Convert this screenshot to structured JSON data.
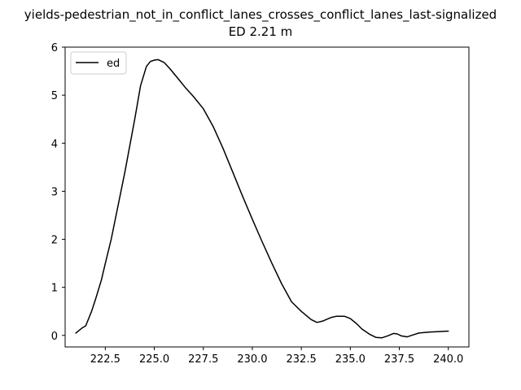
{
  "chart_data": {
    "type": "line",
    "title": "yields-pedestrian_not_in_conflict_lanes_crosses_conflict_lanes_last-signalized",
    "subtitle": "ED 2.21 m",
    "xlabel": "",
    "ylabel": "",
    "xlim": [
      220.45,
      241.05
    ],
    "ylim": [
      -0.24,
      6.0
    ],
    "x_ticks": [
      222.5,
      225.0,
      227.5,
      230.0,
      232.5,
      235.0,
      237.5,
      240.0
    ],
    "x_tick_labels": [
      "222.5",
      "225.0",
      "227.5",
      "230.0",
      "232.5",
      "235.0",
      "237.5",
      "240.0"
    ],
    "y_ticks": [
      0,
      1,
      2,
      3,
      4,
      5,
      6
    ],
    "y_tick_labels": [
      "0",
      "1",
      "2",
      "3",
      "4",
      "5",
      "6"
    ],
    "grid": false,
    "legend": {
      "position": "top-left",
      "entries": [
        "ed"
      ]
    },
    "series": [
      {
        "name": "ed",
        "color": "#000000",
        "x": [
          221.0,
          221.3,
          221.5,
          221.8,
          222.0,
          222.3,
          222.5,
          222.8,
          223.0,
          223.5,
          224.0,
          224.3,
          224.6,
          224.8,
          225.0,
          225.2,
          225.5,
          225.8,
          226.0,
          226.3,
          226.6,
          227.0,
          227.5,
          228.0,
          228.5,
          229.0,
          229.5,
          230.0,
          230.5,
          231.0,
          231.5,
          232.0,
          232.5,
          233.0,
          233.3,
          233.6,
          234.0,
          234.3,
          234.7,
          235.0,
          235.3,
          235.6,
          236.0,
          236.3,
          236.6,
          236.9,
          237.2,
          237.4,
          237.6,
          237.9,
          238.2,
          238.5,
          239.0,
          239.5,
          240.0
        ],
        "y": [
          0.05,
          0.15,
          0.2,
          0.5,
          0.75,
          1.15,
          1.5,
          2.0,
          2.4,
          3.4,
          4.5,
          5.2,
          5.6,
          5.7,
          5.73,
          5.74,
          5.68,
          5.55,
          5.45,
          5.3,
          5.15,
          4.97,
          4.72,
          4.35,
          3.9,
          3.4,
          2.9,
          2.42,
          1.95,
          1.5,
          1.07,
          0.7,
          0.5,
          0.33,
          0.27,
          0.3,
          0.37,
          0.4,
          0.4,
          0.35,
          0.25,
          0.13,
          0.02,
          -0.04,
          -0.05,
          -0.01,
          0.04,
          0.03,
          -0.01,
          -0.03,
          0.01,
          0.05,
          0.07,
          0.08,
          0.09
        ]
      }
    ]
  }
}
